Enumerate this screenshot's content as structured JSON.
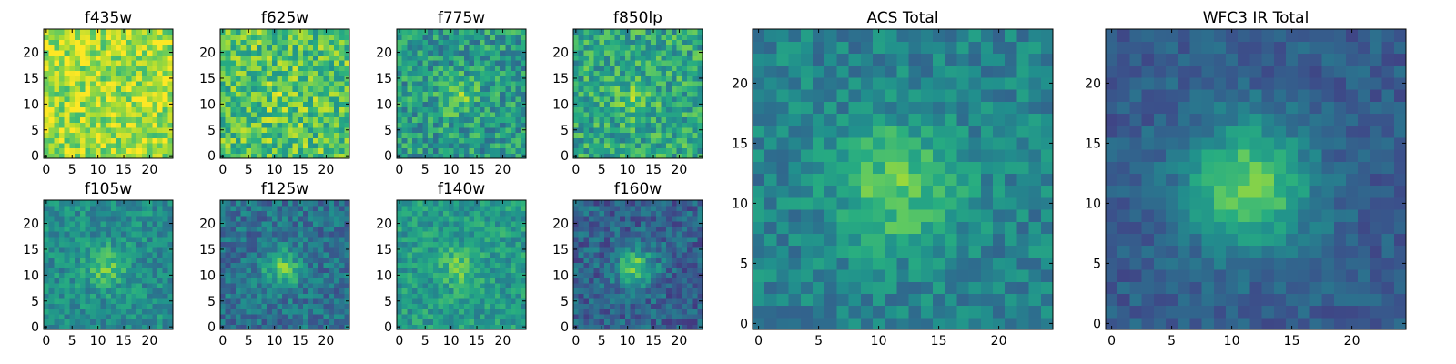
{
  "colors": {
    "colormap": "viridis",
    "axes_frame": "#000000",
    "background": "#ffffff"
  },
  "chart_data": [
    {
      "type": "heatmap",
      "title": "f435w",
      "grid_shape": [
        25,
        25
      ],
      "xticks": [
        0,
        5,
        10,
        15,
        20
      ],
      "yticks": [
        0,
        5,
        10,
        15,
        20
      ],
      "xlim": [
        -0.5,
        24.5
      ],
      "ylim": [
        -0.5,
        24.5
      ],
      "background_level": 0.86,
      "source_peak": 0.0,
      "noise": 0.18,
      "seed": 11
    },
    {
      "type": "heatmap",
      "title": "f625w",
      "grid_shape": [
        25,
        25
      ],
      "xticks": [
        0,
        5,
        10,
        15,
        20
      ],
      "yticks": [
        0,
        5,
        10,
        15,
        20
      ],
      "xlim": [
        -0.5,
        24.5
      ],
      "ylim": [
        -0.5,
        24.5
      ],
      "background_level": 0.72,
      "source_peak": 0.3,
      "noise": 0.22,
      "seed": 23
    },
    {
      "type": "heatmap",
      "title": "f775w",
      "grid_shape": [
        25,
        25
      ],
      "xticks": [
        0,
        5,
        10,
        15,
        20
      ],
      "yticks": [
        0,
        5,
        10,
        15,
        20
      ],
      "xlim": [
        -0.5,
        24.5
      ],
      "ylim": [
        -0.5,
        24.5
      ],
      "background_level": 0.55,
      "source_peak": 0.45,
      "noise": 0.2,
      "seed": 37
    },
    {
      "type": "heatmap",
      "title": "f850lp",
      "grid_shape": [
        25,
        25
      ],
      "xticks": [
        0,
        5,
        10,
        15,
        20
      ],
      "yticks": [
        0,
        5,
        10,
        15,
        20
      ],
      "xlim": [
        -0.5,
        24.5
      ],
      "ylim": [
        -0.5,
        24.5
      ],
      "background_level": 0.6,
      "source_peak": 0.38,
      "noise": 0.2,
      "seed": 41
    },
    {
      "type": "heatmap",
      "title": "f105w",
      "grid_shape": [
        25,
        25
      ],
      "xticks": [
        0,
        5,
        10,
        15,
        20
      ],
      "yticks": [
        0,
        5,
        10,
        15,
        20
      ],
      "xlim": [
        -0.5,
        24.5
      ],
      "ylim": [
        -0.5,
        24.5
      ],
      "background_level": 0.5,
      "source_peak": 0.5,
      "noise": 0.14,
      "seed": 53
    },
    {
      "type": "heatmap",
      "title": "f125w",
      "grid_shape": [
        25,
        25
      ],
      "xticks": [
        0,
        5,
        10,
        15,
        20
      ],
      "yticks": [
        0,
        5,
        10,
        15,
        20
      ],
      "xlim": [
        -0.5,
        24.5
      ],
      "ylim": [
        -0.5,
        24.5
      ],
      "background_level": 0.38,
      "source_peak": 0.6,
      "noise": 0.15,
      "seed": 67
    },
    {
      "type": "heatmap",
      "title": "f140w",
      "grid_shape": [
        25,
        25
      ],
      "xticks": [
        0,
        5,
        10,
        15,
        20
      ],
      "yticks": [
        0,
        5,
        10,
        15,
        20
      ],
      "xlim": [
        -0.5,
        24.5
      ],
      "ylim": [
        -0.5,
        24.5
      ],
      "background_level": 0.55,
      "source_peak": 0.45,
      "noise": 0.14,
      "seed": 71
    },
    {
      "type": "heatmap",
      "title": "f160w",
      "grid_shape": [
        25,
        25
      ],
      "xticks": [
        0,
        5,
        10,
        15,
        20
      ],
      "yticks": [
        0,
        5,
        10,
        15,
        20
      ],
      "xlim": [
        -0.5,
        24.5
      ],
      "ylim": [
        -0.5,
        24.5
      ],
      "background_level": 0.32,
      "source_peak": 0.68,
      "noise": 0.15,
      "seed": 83
    },
    {
      "type": "heatmap",
      "title": "ACS Total",
      "grid_shape": [
        25,
        25
      ],
      "xticks": [
        0,
        5,
        10,
        15,
        20
      ],
      "yticks": [
        0,
        5,
        10,
        15,
        20
      ],
      "xlim": [
        -0.5,
        24.5
      ],
      "ylim": [
        -0.5,
        24.5
      ],
      "background_level": 0.45,
      "source_peak": 0.55,
      "noise": 0.13,
      "seed": 97
    },
    {
      "type": "heatmap",
      "title": "WFC3 IR Total",
      "grid_shape": [
        25,
        25
      ],
      "xticks": [
        0,
        5,
        10,
        15,
        20
      ],
      "yticks": [
        0,
        5,
        10,
        15,
        20
      ],
      "xlim": [
        -0.5,
        24.5
      ],
      "ylim": [
        -0.5,
        24.5
      ],
      "background_level": 0.3,
      "source_peak": 0.7,
      "noise": 0.09,
      "seed": 101
    }
  ]
}
